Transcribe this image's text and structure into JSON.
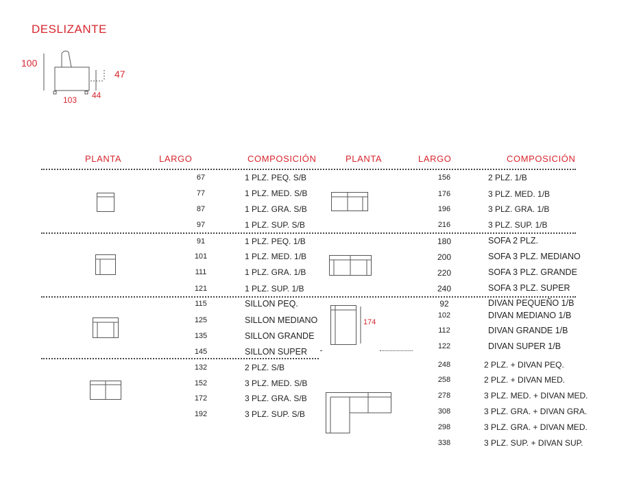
{
  "title": "DESLIZANTE",
  "dimensions": {
    "height_total": "100",
    "seat_height": "47",
    "width": "103",
    "depth": "44"
  },
  "headers": {
    "left": {
      "planta": "PLANTA",
      "largo": "LARGO",
      "composicion": "COMPOSICIÓN"
    },
    "right": {
      "planta": "PLANTA",
      "largo": "LARGO",
      "composicion": "COMPOSICIÓN"
    }
  },
  "left_groups": [
    {
      "rows": [
        {
          "largo": "67",
          "comp": "1 PLZ. PEQ. S/B"
        },
        {
          "largo": "77",
          "comp": "1 PLZ. MED. S/B"
        },
        {
          "largo": "87",
          "comp": "1 PLZ. GRA. S/B"
        },
        {
          "largo": "97",
          "comp": "1 PLZ. SUP. S/B"
        }
      ]
    },
    {
      "rows": [
        {
          "largo": "91",
          "comp": "1 PLZ. PEQ. 1/B"
        },
        {
          "largo": "101",
          "comp": "1 PLZ. MED. 1/B"
        },
        {
          "largo": "111",
          "comp": "1 PLZ. GRA. 1/B"
        },
        {
          "largo": "121",
          "comp": "1 PLZ. SUP. 1/B"
        }
      ]
    },
    {
      "rows": [
        {
          "largo": "115",
          "comp": "SILLON PEQ."
        },
        {
          "largo": "125",
          "comp": "SILLON MEDIANO"
        },
        {
          "largo": "135",
          "comp": "SILLON GRANDE"
        },
        {
          "largo": "145",
          "comp": "SILLON SUPER"
        }
      ]
    },
    {
      "rows": [
        {
          "largo": "132",
          "comp": "2 PLZ. S/B"
        },
        {
          "largo": "152",
          "comp": "3 PLZ. MED. S/B"
        },
        {
          "largo": "172",
          "comp": "3 PLZ. GRA. S/B"
        },
        {
          "largo": "192",
          "comp": "3 PLZ. SUP. S/B"
        }
      ]
    }
  ],
  "right_groups": [
    {
      "rows": [
        {
          "largo": "156",
          "comp": "2 PLZ. 1/B"
        },
        {
          "largo": "176",
          "comp": "3 PLZ. MED. 1/B"
        },
        {
          "largo": "196",
          "comp": "3 PLZ. GRA. 1/B"
        },
        {
          "largo": "216",
          "comp": "3 PLZ. SUP. 1/B"
        }
      ]
    },
    {
      "rows": [
        {
          "largo": "180",
          "comp": "SOFA 2 PLZ."
        },
        {
          "largo": "200",
          "comp": "SOFA 3 PLZ. MEDIANO"
        },
        {
          "largo": "220",
          "comp": "SOFA 3 PLZ. GRANDE"
        },
        {
          "largo": "240",
          "comp": "SOFA 3 PLZ. SUPER"
        }
      ]
    },
    {
      "depth_label": "174",
      "rows": [
        {
          "largo": "92",
          "comp": "DIVAN PEQUEÑO 1/B"
        },
        {
          "largo": "102",
          "comp": "DIVAN MEDIANO 1/B"
        },
        {
          "largo": "112",
          "comp": "DIVAN GRANDE 1/B"
        },
        {
          "largo": "122",
          "comp": "DIVAN SUPER 1/B"
        }
      ]
    },
    {
      "rows": [
        {
          "largo": "248",
          "comp": "2 PLZ. + DIVAN PEQ."
        },
        {
          "largo": "258",
          "comp": "2 PLZ. + DIVAN MED."
        },
        {
          "largo": "278",
          "comp": "3 PLZ. MED. + DIVAN MED."
        },
        {
          "largo": "308",
          "comp": "3 PLZ. GRA. + DIVAN GRA."
        },
        {
          "largo": "298",
          "comp": "3 PLZ. GRA. + DIVAN MED."
        },
        {
          "largo": "338",
          "comp": "3 PLZ. SUP. + DIVAN SUP."
        }
      ]
    }
  ]
}
